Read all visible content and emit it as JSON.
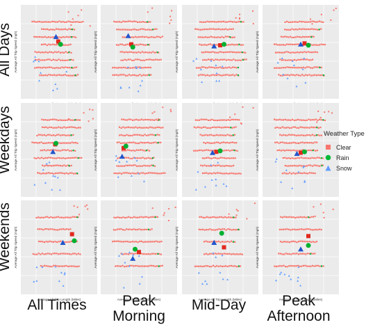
{
  "row_labels": [
    "All Days",
    "Weekdays",
    "Weekends"
  ],
  "col_labels": [
    "All Times",
    "Peak\nMorning",
    "Mid-Day",
    "Peak\nAfternoon"
  ],
  "legend": {
    "title": "Weather Type",
    "items": [
      {
        "name": "Clear",
        "color": "#f8766d",
        "shape": "square"
      },
      {
        "name": "Rain",
        "color": "#00ba38",
        "shape": "circle"
      },
      {
        "name": "Snow",
        "color": "#619cff",
        "shape": "triangle"
      }
    ]
  },
  "panel_text": {
    "xlabel": "Average All Trip Length (Miles)",
    "ylabel": "Average All Trip Speed (mph)"
  },
  "chart_data": {
    "type": "scatter",
    "facets": {
      "rows": [
        "All Days",
        "Weekdays",
        "Weekends"
      ],
      "cols": [
        "All Times",
        "Peak Morning",
        "Mid-Day",
        "Peak Afternoon"
      ]
    },
    "xlabel": "Average All Trip Length (Miles)",
    "ylabel": "Average All Trip Speed (mph)",
    "series": [
      "Clear",
      "Rain",
      "Snow"
    ],
    "means": [
      [
        {
          "Clear": [
            0.49,
            0.39
          ],
          "Rain": [
            0.52,
            0.42
          ],
          "Snow": [
            0.46,
            0.34
          ]
        },
        {
          "Clear": [
            0.4,
            0.42
          ],
          "Rain": [
            0.42,
            0.45
          ],
          "Snow": [
            0.36,
            0.33
          ]
        },
        {
          "Clear": [
            0.5,
            0.43
          ],
          "Rain": [
            0.55,
            0.42
          ],
          "Snow": [
            0.42,
            0.44
          ]
        },
        {
          "Clear": [
            0.55,
            0.41
          ],
          "Rain": [
            0.6,
            0.43
          ],
          "Snow": [
            0.5,
            0.42
          ]
        }
      ],
      [
        {
          "Clear": [
            0.45,
            0.44
          ],
          "Rain": [
            0.46,
            0.43
          ],
          "Snow": [
            0.42,
            0.52
          ]
        },
        {
          "Clear": [
            0.3,
            0.48
          ],
          "Rain": [
            0.33,
            0.46
          ],
          "Snow": [
            0.28,
            0.57
          ]
        },
        {
          "Clear": [
            0.45,
            0.52
          ],
          "Rain": [
            0.5,
            0.51
          ],
          "Snow": [
            0.4,
            0.53
          ]
        },
        {
          "Clear": [
            0.5,
            0.53
          ],
          "Rain": [
            0.55,
            0.52
          ],
          "Snow": [
            0.45,
            0.54
          ]
        }
      ],
      [
        {
          "Clear": [
            0.67,
            0.36
          ],
          "Rain": [
            0.7,
            0.43
          ],
          "Snow": [
            0.55,
            0.45
          ]
        },
        {
          "Clear": [
            0.5,
            0.55
          ],
          "Rain": [
            0.45,
            0.52
          ],
          "Snow": [
            0.42,
            0.62
          ]
        },
        {
          "Clear": [
            0.55,
            0.5
          ],
          "Rain": [
            0.52,
            0.35
          ],
          "Snow": [
            0.42,
            0.45
          ]
        },
        {
          "Clear": [
            0.6,
            0.38
          ],
          "Rain": [
            0.6,
            0.48
          ],
          "Snow": [
            0.5,
            0.52
          ]
        }
      ]
    ]
  }
}
